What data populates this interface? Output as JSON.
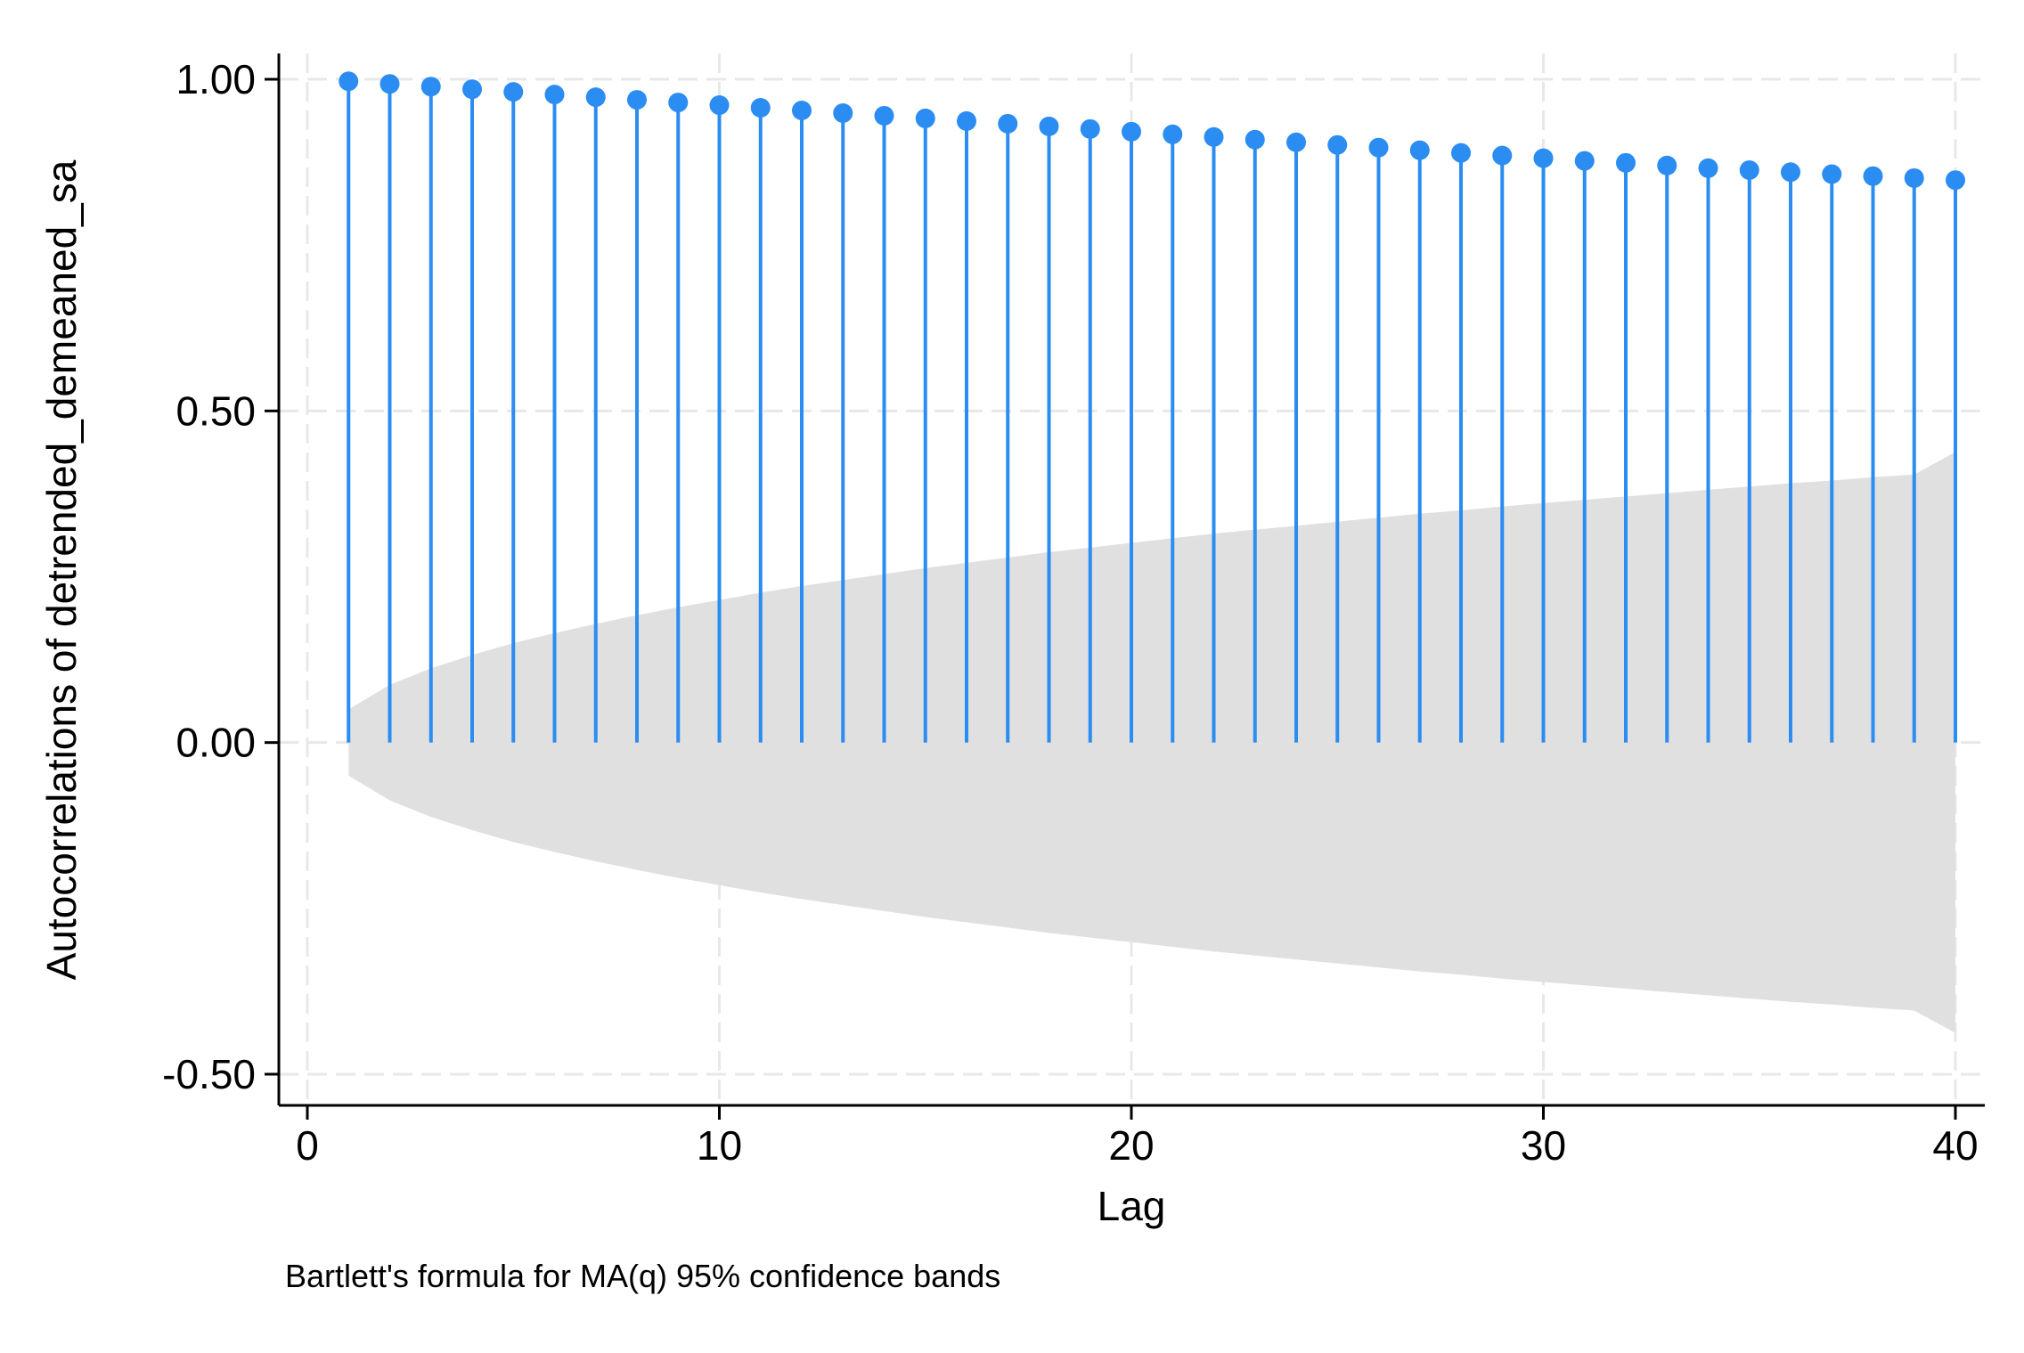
{
  "chart_data": {
    "type": "stem",
    "title": "",
    "xlabel": "Lag",
    "ylabel": "Autocorrelations of detrended_demeaned_sa",
    "note": "Bartlett's formula for MA(q) 95% confidence bands",
    "xlim": [
      0,
      40
    ],
    "ylim": [
      -0.5,
      1.0
    ],
    "xticks": [
      0,
      10,
      20,
      30,
      40
    ],
    "xtick_labels": [
      "0",
      "10",
      "20",
      "30",
      "40"
    ],
    "yticks": [
      -0.5,
      0.0,
      0.5,
      1.0
    ],
    "ytick_labels": [
      "-0.50",
      "0.00",
      "0.50",
      "1.00"
    ],
    "grid": true,
    "legend": "none",
    "colors": {
      "stem": "#2b8cf2",
      "band": "#e0e0e0",
      "grid": "#e8e8e8",
      "axis": "#000000"
    },
    "series": [
      {
        "lags": [
          1,
          2,
          3,
          4,
          5,
          6,
          7,
          8,
          9,
          10,
          11,
          12,
          13,
          14,
          15,
          16,
          17,
          18,
          19,
          20,
          21,
          22,
          23,
          24,
          25,
          26,
          27,
          28,
          29,
          30,
          31,
          32,
          33,
          34,
          35,
          36,
          37,
          38,
          39,
          40
        ],
        "values": [
          0.997,
          0.993,
          0.989,
          0.985,
          0.981,
          0.977,
          0.973,
          0.969,
          0.965,
          0.961,
          0.957,
          0.953,
          0.949,
          0.945,
          0.941,
          0.937,
          0.933,
          0.929,
          0.925,
          0.921,
          0.917,
          0.913,
          0.909,
          0.905,
          0.901,
          0.897,
          0.893,
          0.889,
          0.885,
          0.881,
          0.877,
          0.874,
          0.87,
          0.866,
          0.863,
          0.86,
          0.857,
          0.854,
          0.851,
          0.848
        ]
      }
    ],
    "confidence_band": {
      "lags": [
        1,
        2,
        3,
        4,
        5,
        6,
        7,
        8,
        9,
        10,
        11,
        12,
        13,
        14,
        15,
        16,
        17,
        18,
        19,
        20,
        21,
        22,
        23,
        24,
        25,
        26,
        27,
        28,
        29,
        30,
        31,
        32,
        33,
        34,
        35,
        36,
        37,
        38,
        39,
        40
      ],
      "upper": [
        0.05,
        0.087,
        0.112,
        0.132,
        0.15,
        0.165,
        0.179,
        0.192,
        0.204,
        0.215,
        0.226,
        0.236,
        0.245,
        0.254,
        0.263,
        0.271,
        0.279,
        0.287,
        0.294,
        0.301,
        0.308,
        0.315,
        0.321,
        0.327,
        0.333,
        0.339,
        0.345,
        0.35,
        0.356,
        0.361,
        0.366,
        0.371,
        0.376,
        0.381,
        0.386,
        0.391,
        0.395,
        0.4,
        0.404,
        0.438
      ]
    }
  }
}
